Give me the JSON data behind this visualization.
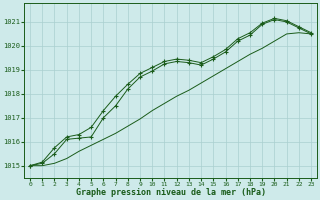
{
  "title": "Graphe pression niveau de la mer (hPa)",
  "bg_color": "#ceeaea",
  "grid_color": "#aacfcf",
  "line_color": "#1a5c1a",
  "xlim": [
    -0.5,
    23.5
  ],
  "ylim": [
    1014.5,
    1021.8
  ],
  "yticks": [
    1015,
    1016,
    1017,
    1018,
    1019,
    1020,
    1021
  ],
  "xticks": [
    0,
    1,
    2,
    3,
    4,
    5,
    6,
    7,
    8,
    9,
    10,
    11,
    12,
    13,
    14,
    15,
    16,
    17,
    18,
    19,
    20,
    21,
    22,
    23
  ],
  "series1_x": [
    0,
    1,
    2,
    3,
    4,
    5,
    6,
    7,
    8,
    9,
    10,
    11,
    12,
    13,
    14,
    15,
    16,
    17,
    18,
    19,
    20,
    21,
    22,
    23
  ],
  "series1_y": [
    1015.0,
    1015.1,
    1015.5,
    1016.1,
    1016.15,
    1016.2,
    1017.0,
    1017.5,
    1018.2,
    1018.7,
    1018.95,
    1019.25,
    1019.35,
    1019.3,
    1019.2,
    1019.45,
    1019.75,
    1020.2,
    1020.45,
    1020.9,
    1021.1,
    1021.0,
    1020.75,
    1020.5
  ],
  "series2_x": [
    0,
    1,
    2,
    3,
    4,
    5,
    6,
    7,
    8,
    9,
    10,
    11,
    12,
    13,
    14,
    15,
    16,
    17,
    18,
    19,
    20,
    21,
    22,
    23
  ],
  "series2_y": [
    1015.0,
    1015.15,
    1015.75,
    1016.2,
    1016.3,
    1016.6,
    1017.3,
    1017.9,
    1018.4,
    1018.85,
    1019.1,
    1019.35,
    1019.45,
    1019.4,
    1019.3,
    1019.55,
    1019.85,
    1020.3,
    1020.55,
    1020.95,
    1021.15,
    1021.05,
    1020.8,
    1020.55
  ],
  "series3_x": [
    0,
    1,
    2,
    3,
    4,
    5,
    6,
    7,
    8,
    9,
    10,
    11,
    12,
    13,
    14,
    15,
    16,
    17,
    18,
    19,
    20,
    21,
    22,
    23
  ],
  "series3_y": [
    1015.0,
    1015.0,
    1015.1,
    1015.3,
    1015.6,
    1015.85,
    1016.1,
    1016.35,
    1016.65,
    1016.95,
    1017.3,
    1017.6,
    1017.9,
    1018.15,
    1018.45,
    1018.75,
    1019.05,
    1019.35,
    1019.65,
    1019.9,
    1020.2,
    1020.5,
    1020.55,
    1020.5
  ]
}
